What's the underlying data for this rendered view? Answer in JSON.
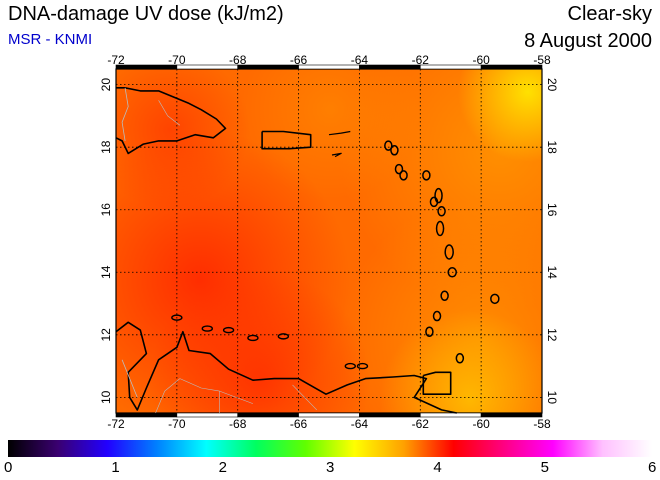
{
  "header": {
    "title": "DNA-damage UV dose (kJ/m2)",
    "source": "MSR - KNMI",
    "sky_condition": "Clear-sky",
    "date": "8 August 2000"
  },
  "colors": {
    "source_text": "#0000cc",
    "field_base": "#ff6a00",
    "field_low": "#ff9300",
    "field_high": "#ff2a00",
    "field_peak": "#ffe600",
    "coast": "#000000",
    "borders": "#bbbbbb"
  },
  "map": {
    "longitude_ticks": [
      -72,
      -70,
      -68,
      -66,
      -64,
      -62,
      -60,
      -58
    ],
    "latitude_ticks": [
      10,
      12,
      14,
      16,
      18,
      20
    ],
    "region": "Caribbean (Greater and Lesser Antilles, northern Venezuela)",
    "field_range_kJ_m2": [
      3.3,
      4.6
    ]
  },
  "colorbar": {
    "tick_labels": [
      "0",
      "1",
      "2",
      "3",
      "4",
      "5",
      "6"
    ],
    "stops": [
      "#000000",
      "#3a0070",
      "#2200ff",
      "#0080ff",
      "#00ffff",
      "#00ff60",
      "#60ff00",
      "#ffff00",
      "#ffa000",
      "#ff0000",
      "#ff0080",
      "#ff00ff",
      "#ffc0ff",
      "#ffffff"
    ]
  }
}
